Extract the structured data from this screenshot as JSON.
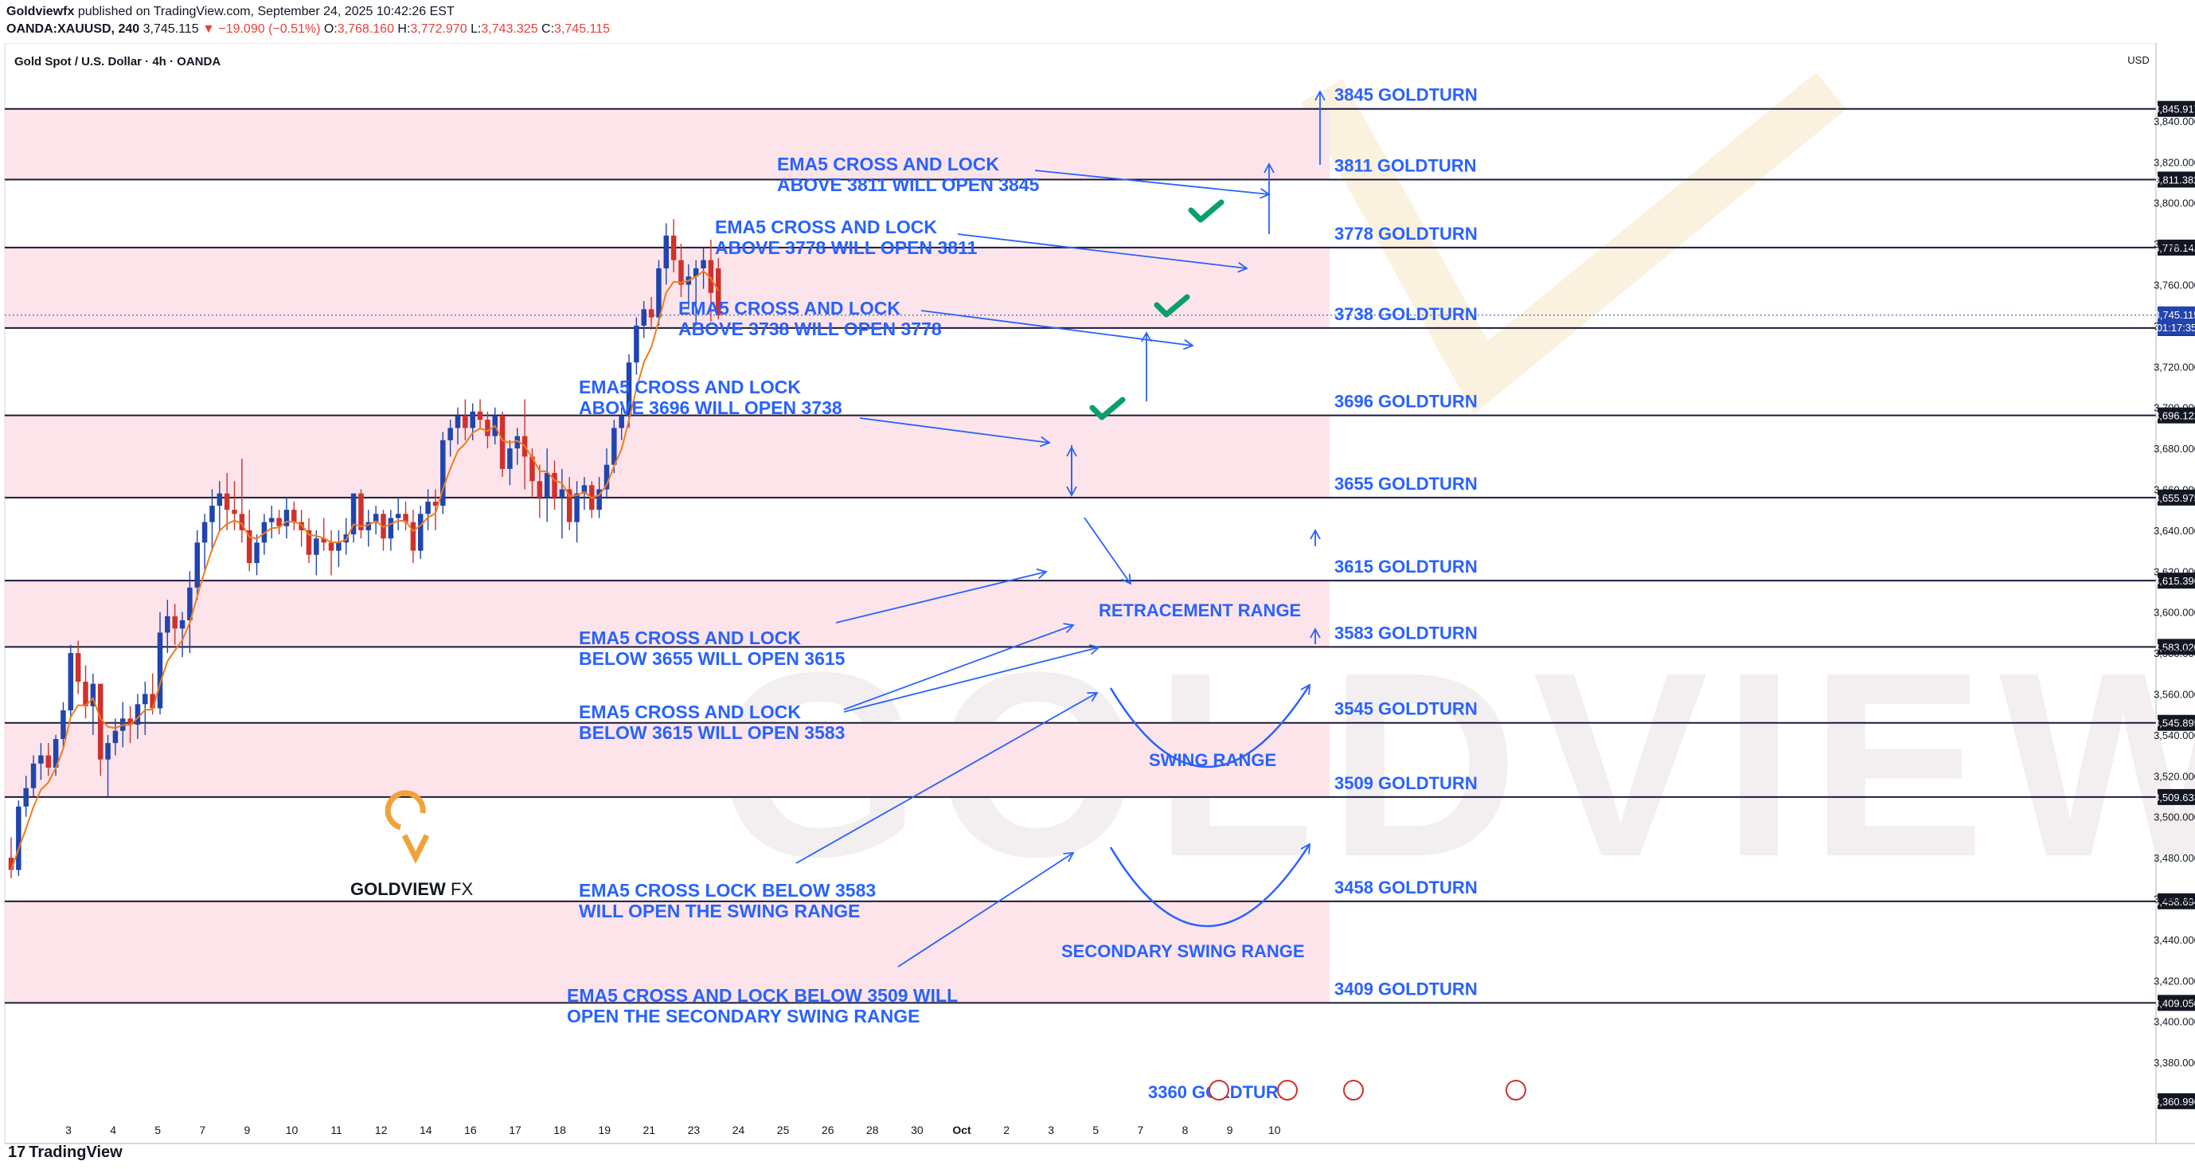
{
  "header": {
    "publisher": "Goldviewfx",
    "published_text": "published on TradingView.com, September 24, 2025 10:42:26 EST",
    "symbol": "OANDA:XAUUSD, 240",
    "last": "3,745.115",
    "change": "−19.090 (−0.51%)",
    "o_label": "O:",
    "o": "3,768.160",
    "h_label": "H:",
    "h": "3,772.970",
    "l_label": "L:",
    "l": "3,743.325",
    "c_label": "C:",
    "c": "3,745.115"
  },
  "chart_title": "Gold Spot / U.S. Dollar · 4h · OANDA",
  "currency": "USD",
  "footer": {
    "brand": "TradingView"
  },
  "colors": {
    "zone": "#fde4ea",
    "zone_border": "#1c1a3a",
    "annotation": "#2962ff",
    "ema": "#f07c1f",
    "bull": "#2145ad",
    "bear": "#d0312d",
    "check": "#0a9f6e"
  },
  "chart_data": {
    "type": "candlestick",
    "y_axis": {
      "ylim": [
        3352,
        3875
      ],
      "tick_labels": [
        "3,380.000",
        "3,400.000",
        "3,420.000",
        "3,440.000",
        "3,460.000",
        "3,480.000",
        "3,500.000",
        "3,520.000",
        "3,540.000",
        "3,560.000",
        "3,580.000",
        "3,600.000",
        "3,620.000",
        "3,640.000",
        "3,660.000",
        "3,680.000",
        "3,700.000",
        "3,720.000",
        "3,740.000",
        "3,760.000",
        "3,780.000",
        "3,800.000",
        "3,820.000",
        "3,840.000"
      ],
      "tick_values": [
        3380,
        3400,
        3420,
        3440,
        3460,
        3480,
        3500,
        3520,
        3540,
        3560,
        3580,
        3600,
        3620,
        3640,
        3660,
        3680,
        3700,
        3720,
        3740,
        3760,
        3780,
        3800,
        3820,
        3840
      ]
    },
    "x_axis": {
      "tick_labels": [
        "3",
        "4",
        "5",
        "7",
        "9",
        "10",
        "11",
        "12",
        "14",
        "16",
        "17",
        "18",
        "19",
        "21",
        "23",
        "24",
        "25",
        "26",
        "28",
        "30",
        "Oct",
        "2",
        "3",
        "5",
        "7",
        "8",
        "9",
        "10"
      ],
      "tick_positions": [
        0,
        6,
        12,
        18,
        24,
        30,
        36,
        42,
        48,
        54,
        60,
        66,
        72,
        78,
        84,
        90,
        96,
        102,
        108,
        114,
        120,
        126,
        132,
        138,
        144,
        150,
        156,
        162
      ]
    },
    "ohlc": [
      [
        3480,
        3490,
        3470,
        3474
      ],
      [
        3474,
        3508,
        3471,
        3505
      ],
      [
        3505,
        3520,
        3500,
        3514
      ],
      [
        3514,
        3530,
        3510,
        3526
      ],
      [
        3526,
        3536,
        3518,
        3530
      ],
      [
        3530,
        3536,
        3520,
        3524
      ],
      [
        3524,
        3540,
        3520,
        3538
      ],
      [
        3538,
        3556,
        3534,
        3552
      ],
      [
        3552,
        3584,
        3548,
        3580
      ],
      [
        3580,
        3586,
        3560,
        3566
      ],
      [
        3566,
        3574,
        3548,
        3554
      ],
      [
        3554,
        3570,
        3540,
        3565
      ],
      [
        3565,
        3564,
        3520,
        3528
      ],
      [
        3528,
        3540,
        3510,
        3536
      ],
      [
        3536,
        3548,
        3530,
        3542
      ],
      [
        3542,
        3556,
        3534,
        3548
      ],
      [
        3548,
        3554,
        3536,
        3545
      ],
      [
        3545,
        3560,
        3538,
        3555
      ],
      [
        3555,
        3566,
        3540,
        3560
      ],
      [
        3560,
        3570,
        3550,
        3553
      ],
      [
        3553,
        3600,
        3550,
        3590
      ],
      [
        3590,
        3606,
        3580,
        3598
      ],
      [
        3598,
        3604,
        3584,
        3592
      ],
      [
        3592,
        3600,
        3578,
        3596
      ],
      [
        3596,
        3620,
        3580,
        3612
      ],
      [
        3612,
        3640,
        3606,
        3634
      ],
      [
        3634,
        3648,
        3620,
        3644
      ],
      [
        3644,
        3660,
        3630,
        3652
      ],
      [
        3652,
        3664,
        3640,
        3658
      ],
      [
        3658,
        3668,
        3640,
        3650
      ],
      [
        3650,
        3664,
        3640,
        3648
      ],
      [
        3648,
        3675,
        3634,
        3640
      ],
      [
        3640,
        3650,
        3620,
        3624
      ],
      [
        3624,
        3638,
        3618,
        3634
      ],
      [
        3634,
        3648,
        3628,
        3644
      ],
      [
        3644,
        3652,
        3636,
        3646
      ],
      [
        3646,
        3650,
        3638,
        3642
      ],
      [
        3642,
        3656,
        3636,
        3650
      ],
      [
        3650,
        3654,
        3640,
        3644
      ],
      [
        3644,
        3650,
        3632,
        3640
      ],
      [
        3640,
        3646,
        3624,
        3628
      ],
      [
        3628,
        3640,
        3618,
        3636
      ],
      [
        3636,
        3646,
        3630,
        3634
      ],
      [
        3634,
        3640,
        3618,
        3630
      ],
      [
        3630,
        3640,
        3622,
        3634
      ],
      [
        3634,
        3646,
        3628,
        3638
      ],
      [
        3638,
        3656,
        3634,
        3658
      ],
      [
        3658,
        3660,
        3636,
        3640
      ],
      [
        3640,
        3650,
        3632,
        3644
      ],
      [
        3644,
        3652,
        3638,
        3648
      ],
      [
        3648,
        3650,
        3630,
        3636
      ],
      [
        3636,
        3650,
        3630,
        3646
      ],
      [
        3646,
        3656,
        3640,
        3648
      ],
      [
        3648,
        3654,
        3640,
        3644
      ],
      [
        3644,
        3650,
        3624,
        3630
      ],
      [
        3630,
        3652,
        3626,
        3648
      ],
      [
        3648,
        3660,
        3640,
        3654
      ],
      [
        3654,
        3660,
        3640,
        3652
      ],
      [
        3652,
        3688,
        3648,
        3684
      ],
      [
        3684,
        3694,
        3676,
        3690
      ],
      [
        3690,
        3700,
        3682,
        3696
      ],
      [
        3696,
        3704,
        3684,
        3690
      ],
      [
        3690,
        3702,
        3684,
        3698
      ],
      [
        3698,
        3704,
        3690,
        3694
      ],
      [
        3694,
        3698,
        3680,
        3686
      ],
      [
        3686,
        3700,
        3682,
        3696
      ],
      [
        3696,
        3698,
        3666,
        3670
      ],
      [
        3670,
        3684,
        3662,
        3680
      ],
      [
        3680,
        3690,
        3672,
        3686
      ],
      [
        3686,
        3704,
        3660,
        3676
      ],
      [
        3676,
        3680,
        3656,
        3664
      ],
      [
        3664,
        3672,
        3646,
        3656
      ],
      [
        3656,
        3680,
        3644,
        3668
      ],
      [
        3668,
        3674,
        3650,
        3656
      ],
      [
        3656,
        3670,
        3636,
        3660
      ],
      [
        3660,
        3666,
        3640,
        3644
      ],
      [
        3644,
        3664,
        3634,
        3658
      ],
      [
        3658,
        3666,
        3650,
        3662
      ],
      [
        3662,
        3664,
        3646,
        3650
      ],
      [
        3650,
        3666,
        3646,
        3660
      ],
      [
        3660,
        3680,
        3656,
        3672
      ],
      [
        3672,
        3694,
        3668,
        3690
      ],
      [
        3690,
        3700,
        3684,
        3696
      ],
      [
        3696,
        3726,
        3690,
        3722
      ],
      [
        3722,
        3744,
        3716,
        3740
      ],
      [
        3740,
        3752,
        3734,
        3748
      ],
      [
        3748,
        3754,
        3738,
        3744
      ],
      [
        3744,
        3772,
        3740,
        3768
      ],
      [
        3768,
        3790,
        3760,
        3784
      ],
      [
        3784,
        3792,
        3766,
        3772
      ],
      [
        3772,
        3780,
        3754,
        3760
      ],
      [
        3760,
        3770,
        3748,
        3764
      ],
      [
        3764,
        3772,
        3740,
        3768
      ],
      [
        3768,
        3778,
        3758,
        3772
      ],
      [
        3772,
        3782,
        3742,
        3756
      ],
      [
        3768,
        3773,
        3743,
        3745
      ]
    ],
    "ema5_label": "EMA5",
    "levels": [
      {
        "value": 3845.917,
        "label": "3845 GOLDTURN",
        "axis_label": "3,845.917"
      },
      {
        "value": 3811.382,
        "label": "3811 GOLDTURN",
        "axis_label": "3,811.382"
      },
      {
        "value": 3778.142,
        "label": "3778 GOLDTURN",
        "axis_label": "3,778.142"
      },
      {
        "value": 3738.859,
        "label": "3738 GOLDTURN",
        "axis_label": "3,738.859"
      },
      {
        "value": 3696.122,
        "label": "3696 GOLDTURN",
        "axis_label": "3,696.122"
      },
      {
        "value": 3655.975,
        "label": "3655 GOLDTURN",
        "axis_label": "3,655.975"
      },
      {
        "value": 3615.396,
        "label": "3615 GOLDTURN",
        "axis_label": "3,615.396"
      },
      {
        "value": 3583.02,
        "label": "3583 GOLDTURN",
        "axis_label": "3,583.020"
      },
      {
        "value": 3545.895,
        "label": "3545 GOLDTURN",
        "axis_label": "3,545.895"
      },
      {
        "value": 3509.633,
        "label": "3509 GOLDTURN",
        "axis_label": "3,509.633"
      },
      {
        "value": 3458.694,
        "label": "3458 GOLDTURN",
        "axis_label": "3,458.694"
      },
      {
        "value": 3409.05,
        "label": "3409 GOLDTURN",
        "axis_label": "3,409.050"
      },
      {
        "value": 3360.996,
        "label": "3360 GOLDTURN",
        "axis_label": "3,360.996"
      }
    ],
    "zones": [
      [
        3811.382,
        3845.917
      ],
      [
        3738.859,
        3778.142
      ],
      [
        3655.975,
        3696.122
      ],
      [
        3583.02,
        3615.396
      ],
      [
        3509.633,
        3545.895
      ],
      [
        3409.05,
        3458.694
      ]
    ],
    "current_price": {
      "value": 3745.115,
      "label": "3,745.115",
      "countdown": "01:17:35"
    },
    "annotations": [
      {
        "lines": [
          "EMA5 CROSS AND LOCK",
          "ABOVE 3811 WILL OPEN 3845"
        ]
      },
      {
        "lines": [
          "EMA5 CROSS AND LOCK",
          "ABOVE 3778 WILL OPEN 3811"
        ]
      },
      {
        "lines": [
          "EMA5 CROSS AND LOCK",
          "ABOVE 3738 WILL OPEN 3778"
        ]
      },
      {
        "lines": [
          "EMA5 CROSS AND LOCK",
          "ABOVE 3696 WILL OPEN 3738"
        ]
      },
      {
        "lines": [
          "EMA5 CROSS AND LOCK",
          "BELOW 3655 WILL OPEN 3615"
        ]
      },
      {
        "lines": [
          "EMA5 CROSS AND LOCK",
          "BELOW 3615 WILL OPEN 3583"
        ]
      },
      {
        "lines": [
          "EMA5 CROSS LOCK BELOW 3583",
          "WILL OPEN THE SWING RANGE"
        ]
      },
      {
        "lines": [
          "EMA5 CROSS AND LOCK BELOW 3509 WILL",
          "OPEN THE SECONDARY SWING RANGE"
        ]
      }
    ],
    "range_labels": [
      "RETRACEMENT RANGE",
      "SWING RANGE",
      "SECONDARY SWING RANGE"
    ],
    "watermark": "GOLDVIEW",
    "logo_text": "GOLDVIEW",
    "logo_text2": "FX"
  }
}
